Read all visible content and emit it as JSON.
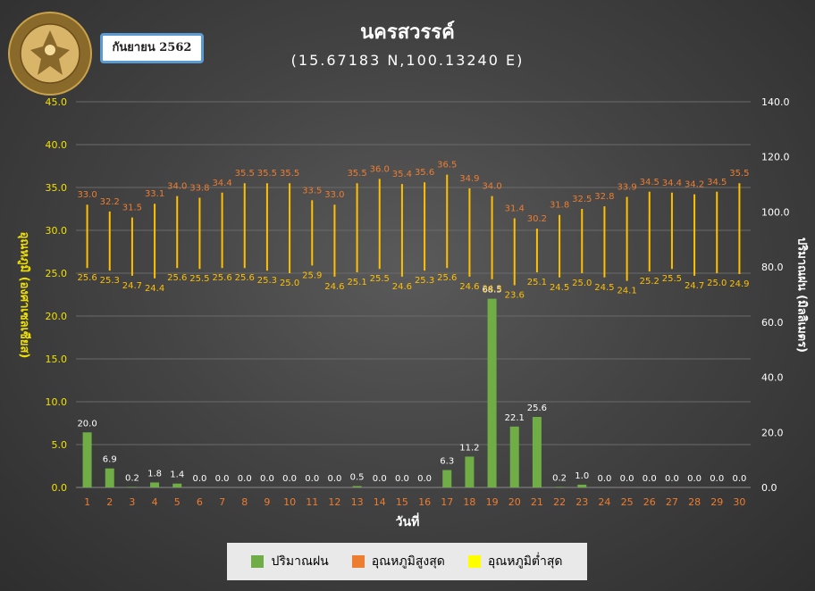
{
  "header": {
    "title": "นครสวรรค์",
    "coordinates": "(15.67183 N,100.13240 E)",
    "month": "กันยายน 2562",
    "logo_text_th": "กรมอุตุนิยมวิทยา",
    "logo_text_en": "METEOROLOGICAL DEPARTMENT"
  },
  "colors": {
    "rain": "#70ad47",
    "tmax": "#ed7d31",
    "tmin": "#ffc000",
    "left_axis": "#f0e000",
    "tick_x": "#ed7d31"
  },
  "chart_data": {
    "type": "bar",
    "x": [
      1,
      2,
      3,
      4,
      5,
      6,
      7,
      8,
      9,
      10,
      11,
      12,
      13,
      14,
      15,
      16,
      17,
      18,
      19,
      20,
      21,
      22,
      23,
      24,
      25,
      26,
      27,
      28,
      29,
      30
    ],
    "xlabel": "วันที่",
    "ylabel_left": "อุณหภูมิ (องศาเซลเซียส)",
    "ylabel_right": "ปริมาณฝน (มิลลิเมตร)",
    "ylim_left": [
      0,
      45
    ],
    "ylim_right": [
      0,
      140
    ],
    "yticks_left": [
      "0.0",
      "5.0",
      "10.0",
      "15.0",
      "20.0",
      "25.0",
      "30.0",
      "35.0",
      "40.0",
      "45.0"
    ],
    "yticks_right": [
      "0.0",
      "20.0",
      "40.0",
      "60.0",
      "80.0",
      "100.0",
      "120.0",
      "140.0"
    ],
    "series": [
      {
        "name": "ปริมาณฝน",
        "axis": "right",
        "kind": "bar",
        "values": [
          20.0,
          6.9,
          0.2,
          1.8,
          1.4,
          0.0,
          0.0,
          0.0,
          0.0,
          0.0,
          0.0,
          0.0,
          0.5,
          0.0,
          0.0,
          0.0,
          6.3,
          11.2,
          68.5,
          22.1,
          25.6,
          0.2,
          1.0,
          0.0,
          0.0,
          0.0,
          0.0,
          0.0,
          0.0,
          0.0
        ]
      },
      {
        "name": "อุณหภูมิสูงสุด",
        "axis": "left",
        "kind": "range-high",
        "values": [
          33.0,
          32.2,
          31.5,
          33.1,
          34.0,
          33.8,
          34.4,
          35.5,
          35.5,
          35.5,
          33.5,
          33.0,
          35.5,
          36.0,
          35.4,
          35.6,
          36.5,
          34.9,
          34.0,
          31.4,
          30.2,
          31.8,
          32.5,
          32.8,
          33.9,
          34.5,
          34.4,
          34.2,
          34.5,
          35.5
        ]
      },
      {
        "name": "อุณหภูมิต่ำสุด",
        "axis": "left",
        "kind": "range-low",
        "values": [
          25.6,
          25.3,
          24.7,
          24.4,
          25.6,
          25.5,
          25.6,
          25.6,
          25.3,
          25.0,
          25.9,
          24.6,
          25.1,
          25.5,
          24.6,
          25.3,
          25.6,
          24.6,
          24.3,
          23.6,
          25.1,
          24.5,
          25.0,
          24.5,
          24.1,
          25.2,
          25.5,
          24.7,
          25.0,
          24.9
        ]
      }
    ],
    "legend_position": "bottom"
  }
}
